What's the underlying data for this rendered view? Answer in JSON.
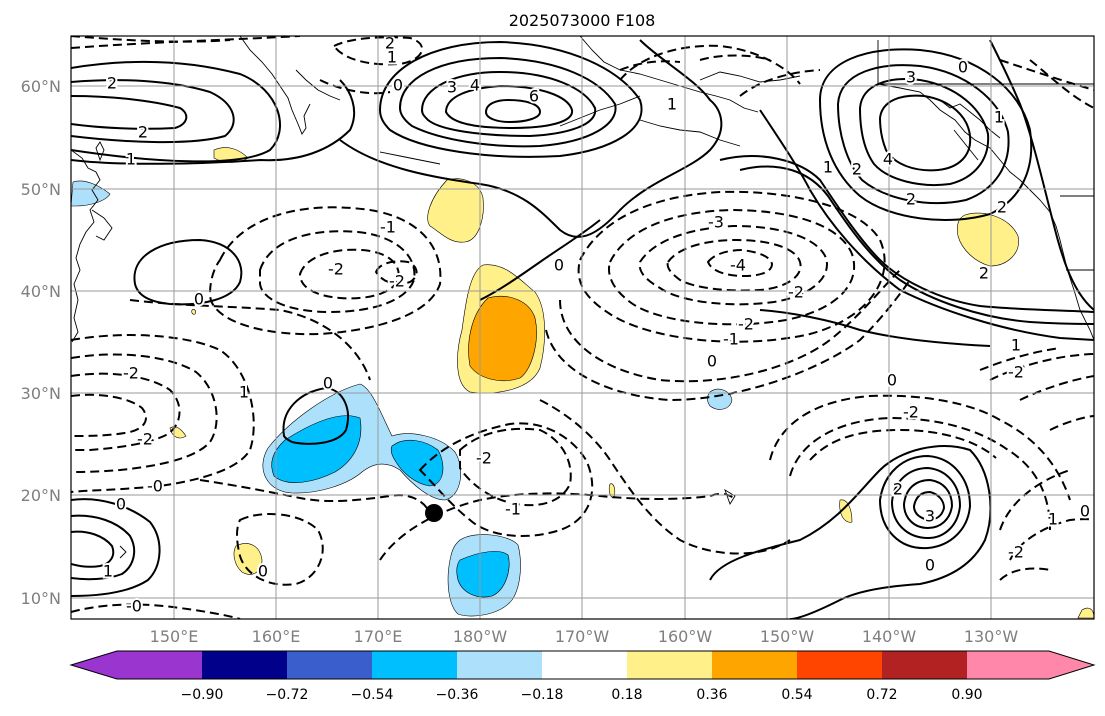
{
  "title": "2025073000 F108",
  "lat_labels": [
    "60°N",
    "50°N",
    "40°N",
    "30°N",
    "20°N",
    "10°N"
  ],
  "lon_labels": [
    "150°E",
    "160°E",
    "170°E",
    "180°W",
    "170°W",
    "160°W",
    "150°W",
    "140°W",
    "130°W"
  ],
  "colorbar": {
    "tick_labels": [
      "−0.90",
      "−0.72",
      "−0.54",
      "−0.36",
      "−0.18",
      "0.18",
      "0.36",
      "0.54",
      "0.72",
      "0.90"
    ],
    "colors": [
      "#9a35d0",
      "#00008b",
      "#3a5fcd",
      "#00bfff",
      "#ade0fb",
      "#ffffff",
      "#fff08a",
      "#ffa500",
      "#ff4500",
      "#b22222",
      "#ff88aa"
    ]
  },
  "contour_labels": [
    {
      "text": "2",
      "ox": 112,
      "oy": 84
    },
    {
      "text": "2",
      "ox": 143,
      "oy": 133
    },
    {
      "text": "1",
      "ox": 131,
      "oy": 160
    },
    {
      "text": "2",
      "ox": 390,
      "oy": 44
    },
    {
      "text": "1",
      "ox": 392,
      "oy": 58
    },
    {
      "text": "0",
      "ox": 398,
      "oy": 86
    },
    {
      "text": "3",
      "ox": 452,
      "oy": 88
    },
    {
      "text": "4",
      "ox": 475,
      "oy": 86
    },
    {
      "text": "6",
      "ox": 534,
      "oy": 97
    },
    {
      "text": "3",
      "ox": 911,
      "oy": 78
    },
    {
      "text": "4",
      "ox": 888,
      "oy": 160
    },
    {
      "text": "1",
      "ox": 828,
      "oy": 168
    },
    {
      "text": "2",
      "ox": 857,
      "oy": 170
    },
    {
      "text": "2",
      "ox": 911,
      "oy": 200
    },
    {
      "text": "0",
      "ox": 963,
      "oy": 68
    },
    {
      "text": "1",
      "ox": 999,
      "oy": 118
    },
    {
      "text": "1",
      "ox": 672,
      "oy": 105
    },
    {
      "text": "-1",
      "ox": 388,
      "oy": 228
    },
    {
      "text": "-2",
      "ox": 336,
      "oy": 270
    },
    {
      "text": "-2",
      "ox": 397,
      "oy": 282
    },
    {
      "text": "0",
      "ox": 199,
      "oy": 300
    },
    {
      "text": "0",
      "ox": 559,
      "oy": 266
    },
    {
      "text": "-3",
      "ox": 716,
      "oy": 223
    },
    {
      "text": "-4",
      "ox": 738,
      "oy": 266
    },
    {
      "text": "-2",
      "ox": 796,
      "oy": 293
    },
    {
      "text": "-2",
      "ox": 746,
      "oy": 325
    },
    {
      "text": "-1",
      "ox": 731,
      "oy": 340
    },
    {
      "text": "0",
      "ox": 712,
      "oy": 362
    },
    {
      "text": "-2",
      "ox": 131,
      "oy": 374
    },
    {
      "text": "1",
      "ox": 244,
      "oy": 393
    },
    {
      "text": "0",
      "ox": 328,
      "oy": 384
    },
    {
      "text": "-2",
      "ox": 145,
      "oy": 440
    },
    {
      "text": "-0",
      "ox": 155,
      "oy": 487
    },
    {
      "text": "-2",
      "ox": 484,
      "oy": 459
    },
    {
      "text": "-1",
      "ox": 513,
      "oy": 510
    },
    {
      "text": "0",
      "ox": 121,
      "oy": 505
    },
    {
      "text": "1",
      "ox": 108,
      "oy": 572
    },
    {
      "text": "0",
      "ox": 263,
      "oy": 572
    },
    {
      "text": "-0",
      "ox": 134,
      "oy": 607
    },
    {
      "text": "0",
      "ox": 892,
      "oy": 381
    },
    {
      "text": "-2",
      "ox": 911,
      "oy": 413
    },
    {
      "text": "1",
      "ox": 1016,
      "oy": 346
    },
    {
      "text": "-2",
      "ox": 1016,
      "oy": 373
    },
    {
      "text": "2",
      "ox": 898,
      "oy": 490
    },
    {
      "text": "3",
      "ox": 930,
      "oy": 517
    },
    {
      "text": "0",
      "ox": 930,
      "oy": 566
    },
    {
      "text": "-2",
      "ox": 1016,
      "oy": 553
    },
    {
      "text": "1",
      "ox": 1053,
      "oy": 520
    },
    {
      "text": "0",
      "ox": 1085,
      "oy": 512
    },
    {
      "text": "2",
      "ox": 984,
      "oy": 274
    },
    {
      "text": "2",
      "ox": 1002,
      "oy": 208
    }
  ]
}
